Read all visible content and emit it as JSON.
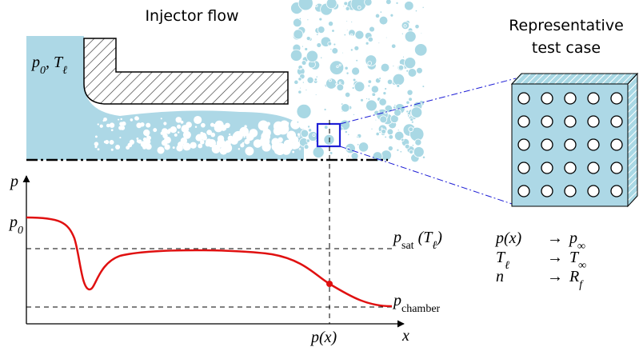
{
  "title_left": "Injector flow",
  "title_right": [
    "Representative",
    "test case"
  ],
  "labels": {
    "inlet": [
      {
        "t": "p"
      },
      {
        "sub": "0"
      },
      {
        "t": ", T"
      },
      {
        "sub": "ℓ"
      }
    ],
    "axis_y": [
      {
        "t": "p"
      }
    ],
    "axis_p0": [
      {
        "t": "p"
      },
      {
        "sub": "0"
      }
    ],
    "axis_x": [
      {
        "t": "x"
      }
    ],
    "p_sat": [
      {
        "t": "p"
      },
      {
        "sub": "sat"
      },
      {
        "t": " (T"
      },
      {
        "sub": "ℓ"
      },
      {
        "t": ")"
      }
    ],
    "p_chamber": [
      {
        "t": "p"
      },
      {
        "sub": "chamber"
      }
    ],
    "p_x": [
      {
        "t": "p(x)"
      }
    ]
  },
  "mapping": [
    {
      "left": [
        {
          "t": "p(x)"
        }
      ],
      "arrow": "→",
      "right": [
        {
          "t": "p"
        },
        {
          "sub": "∞"
        }
      ]
    },
    {
      "left": [
        {
          "t": "T"
        },
        {
          "sub": "ℓ"
        }
      ],
      "arrow": "→",
      "right": [
        {
          "t": "T"
        },
        {
          "sub": "∞"
        }
      ]
    },
    {
      "left": [
        {
          "t": "n"
        }
      ],
      "arrow": "→",
      "right": [
        {
          "t": "R"
        },
        {
          "sub": "f"
        }
      ]
    }
  ]
}
